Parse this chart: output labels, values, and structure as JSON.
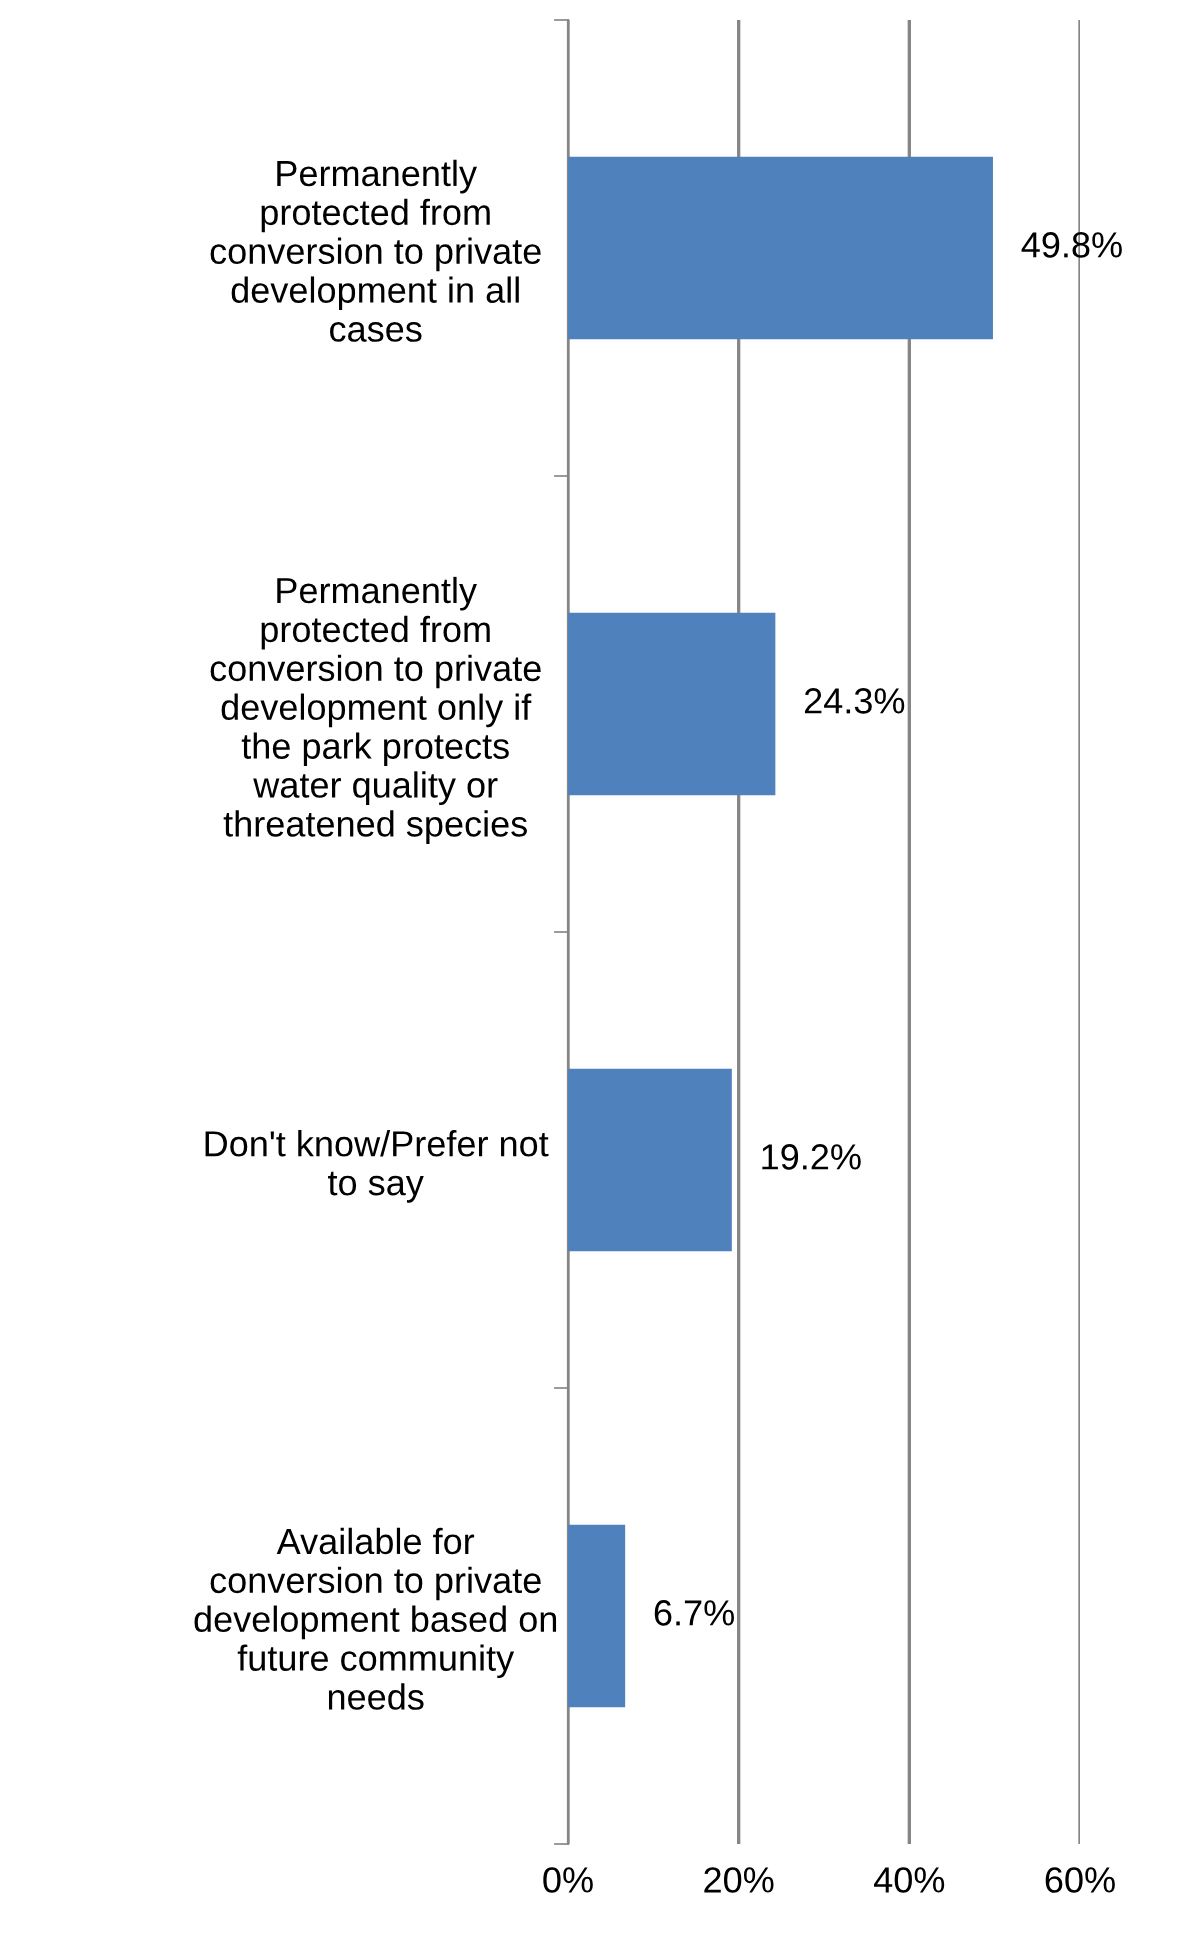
{
  "chart_data": {
    "type": "bar",
    "orientation": "horizontal",
    "categories": [
      "Permanently\nprotected from\nconversion to private\ndevelopment in all\ncases",
      "Permanently\nprotected from\nconversion to private\ndevelopment only if\nthe park protects\nwater quality or\nthreatened species",
      "Don't know/Prefer not\nto say",
      "Available for\nconversion to private\ndevelopment based on\nfuture community\nneeds"
    ],
    "values": [
      49.8,
      24.3,
      19.2,
      6.7
    ],
    "value_labels": [
      "49.8%",
      "24.3%",
      "19.2%",
      "6.7%"
    ],
    "color": "#4f81bd",
    "xlim": [
      0,
      60
    ],
    "xticks": [
      {
        "value": 0,
        "label": "0%"
      },
      {
        "value": 20,
        "label": "20%"
      },
      {
        "value": 40,
        "label": "40%"
      },
      {
        "value": 60,
        "label": "60%"
      }
    ],
    "grid": "x",
    "legend": false
  }
}
